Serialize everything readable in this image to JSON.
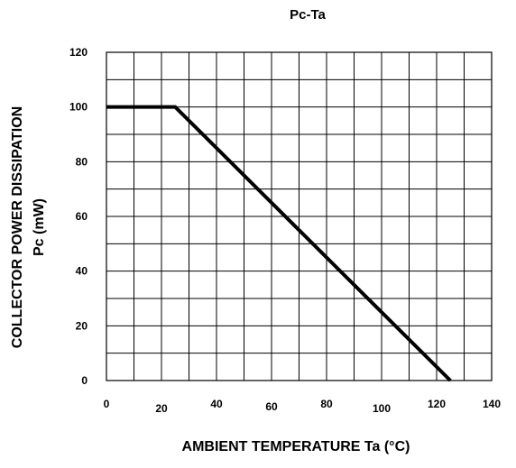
{
  "chart_data": {
    "type": "line",
    "title": "Pc-Ta",
    "xlabel": "AMBIENT TEMPERATURE Ta (°C)",
    "ylabel_line1": "COLLECTOR POWER DISSIPATION",
    "ylabel_line2": "Pc (mW)",
    "xlim": [
      0,
      140
    ],
    "ylim": [
      0,
      120
    ],
    "x_ticks": [
      0,
      20,
      40,
      60,
      80,
      100,
      120,
      140
    ],
    "x_tick_labels": [
      "0",
      "20",
      "40",
      "60",
      "80",
      "100",
      "120",
      "140"
    ],
    "y_ticks": [
      0,
      20,
      40,
      60,
      80,
      100,
      120
    ],
    "y_tick_labels": [
      "0",
      "20",
      "40",
      "60",
      "80",
      "100",
      "120"
    ],
    "x_minor_step": 10,
    "y_minor_step": 10,
    "grid": true,
    "series": [
      {
        "x": [
          0,
          25,
          125
        ],
        "y": [
          100,
          100,
          0
        ],
        "color": "#000000"
      }
    ]
  }
}
